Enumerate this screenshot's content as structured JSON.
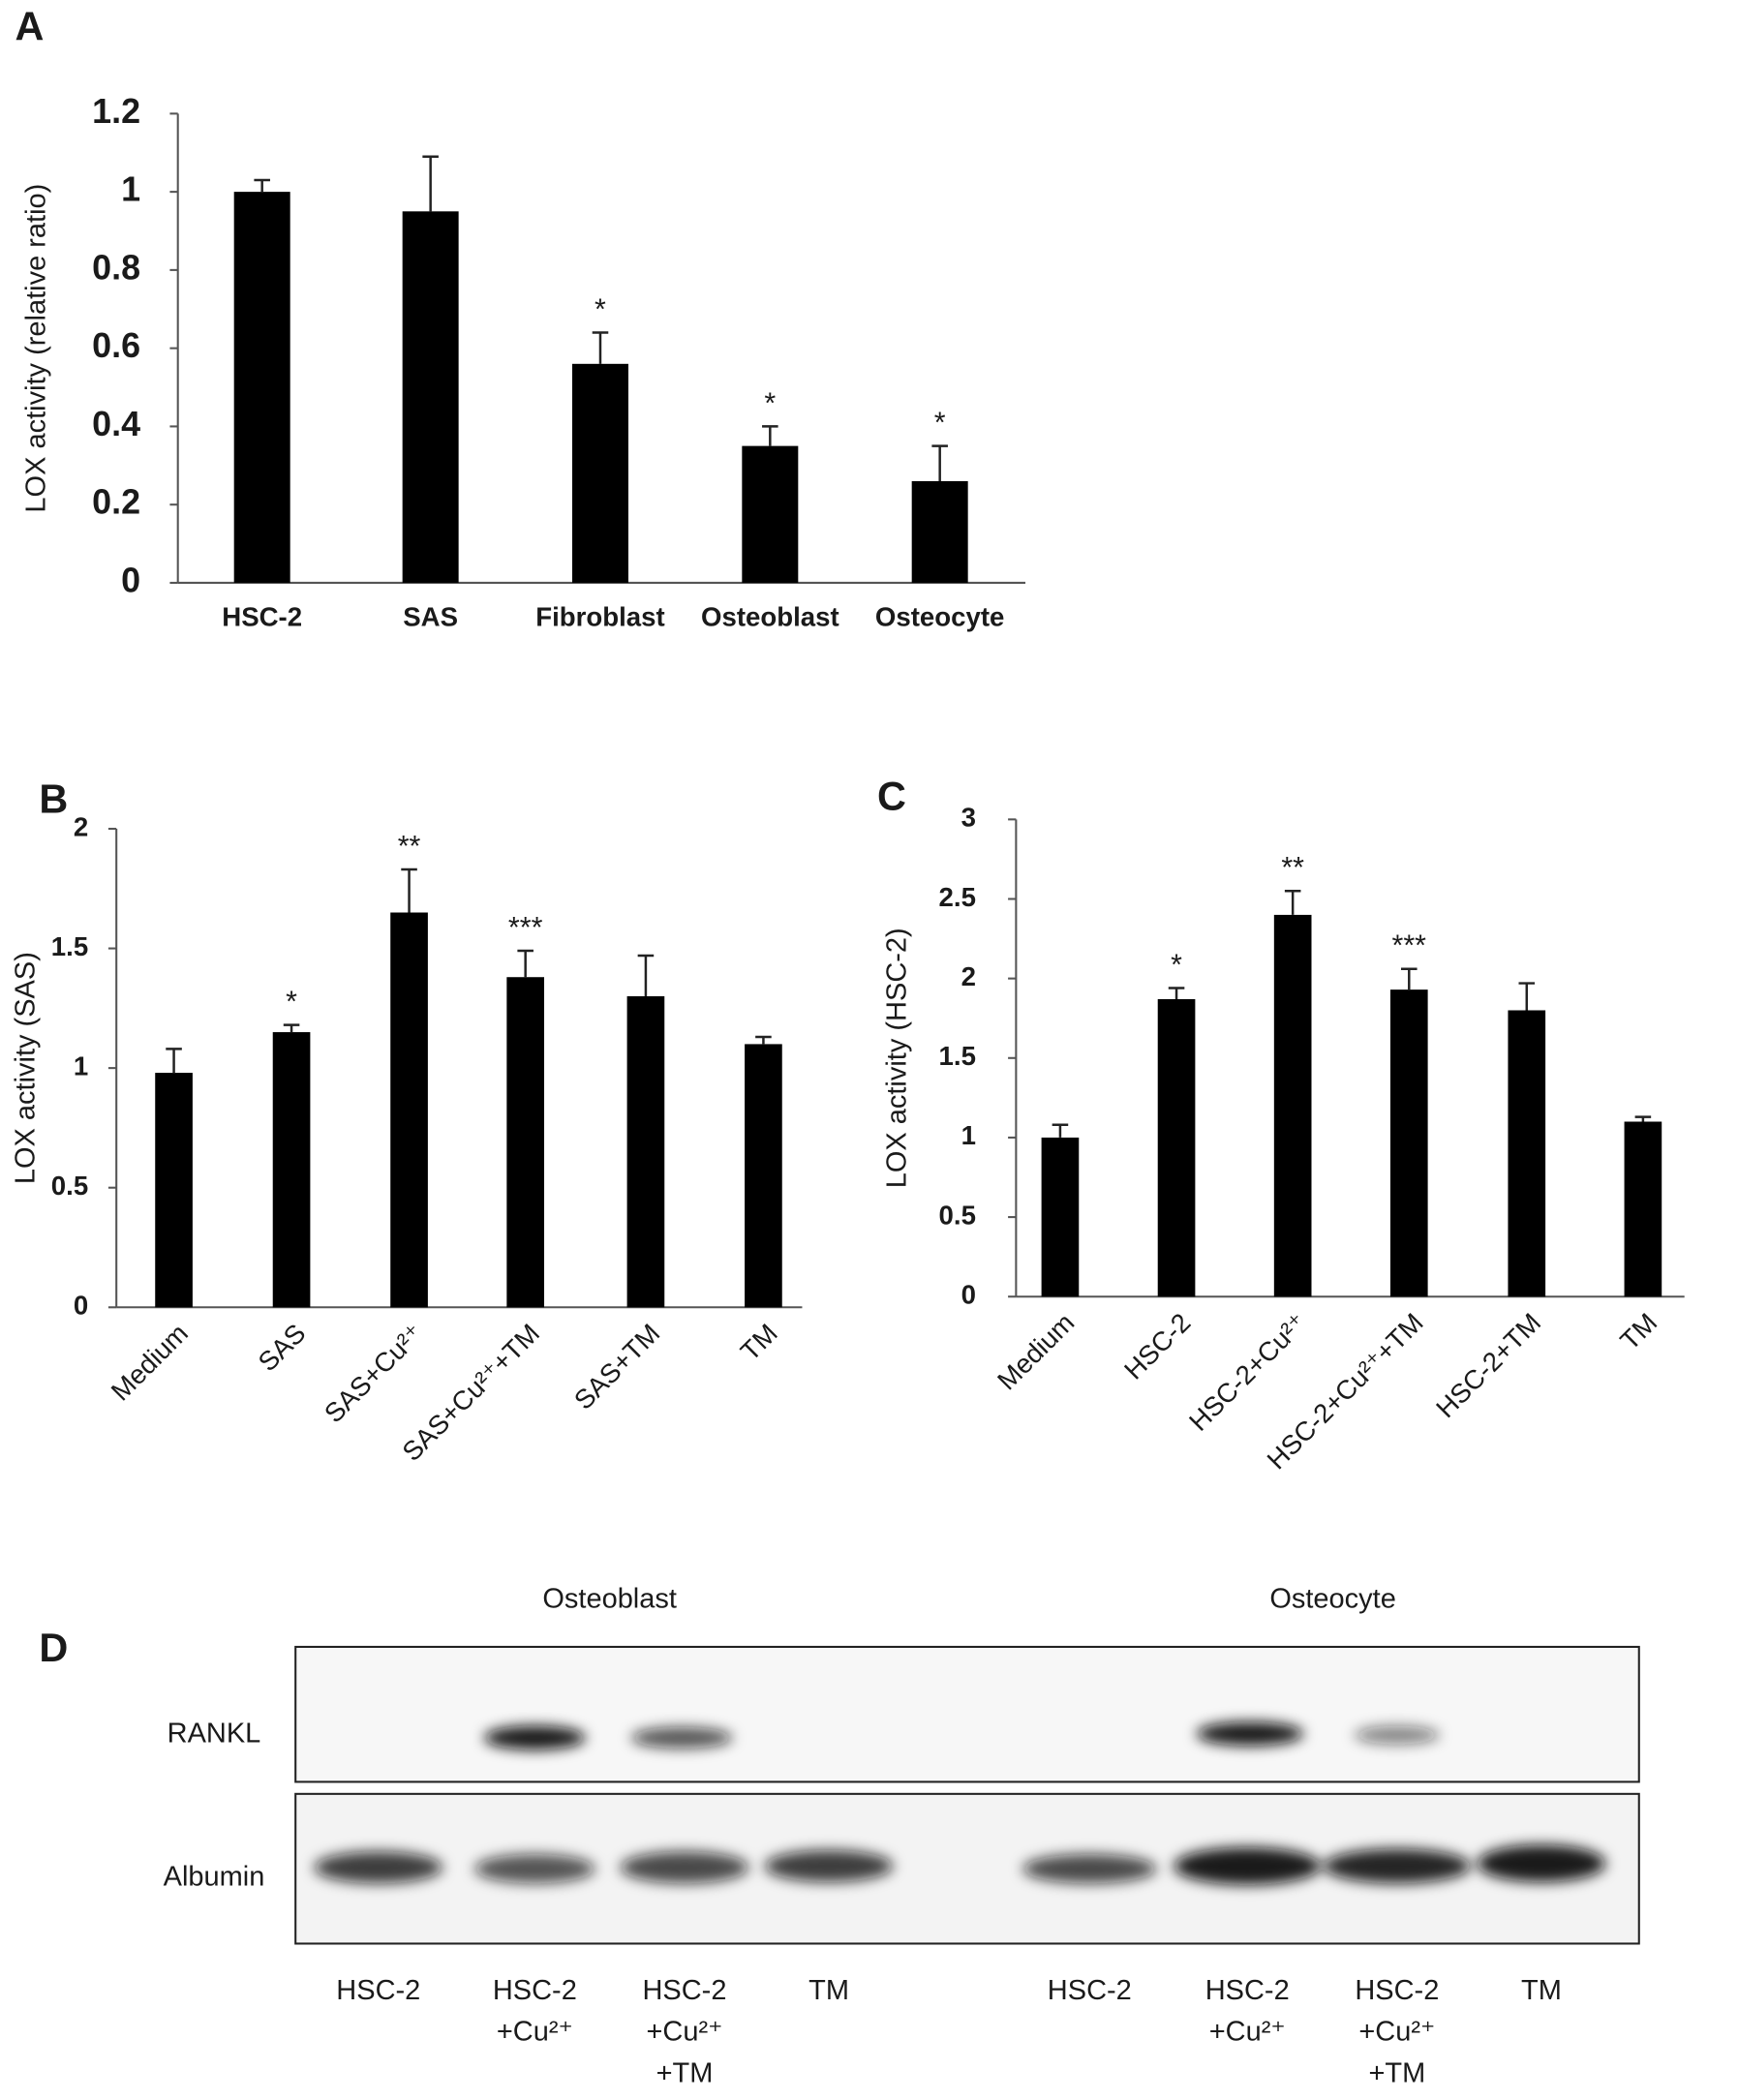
{
  "chart_data": [
    {
      "type": "bar",
      "panel": "A",
      "y_label": "LOX activity  (relative ratio)",
      "categories": [
        "HSC-2",
        "SAS",
        "Fibroblast",
        "Osteoblast",
        "Osteocyte"
      ],
      "values": [
        1.0,
        0.95,
        0.56,
        0.35,
        0.26
      ],
      "errors": [
        0.03,
        0.14,
        0.08,
        0.05,
        0.09
      ],
      "annotations": [
        null,
        null,
        "*",
        "*",
        "*"
      ],
      "color": "#000000",
      "ylim": [
        0,
        1.2
      ],
      "yticks": [
        0,
        0.2,
        0.4,
        0.6,
        0.8,
        1,
        1.2
      ]
    },
    {
      "type": "bar",
      "panel": "B",
      "y_label": "LOX activity (SAS)",
      "categories": [
        "Medium",
        "SAS",
        "SAS+Cu²⁺",
        "SAS+Cu²⁺+TM",
        "SAS+TM",
        "TM"
      ],
      "values": [
        0.98,
        1.15,
        1.65,
        1.38,
        1.3,
        1.1
      ],
      "errors": [
        0.1,
        0.03,
        0.18,
        0.11,
        0.17,
        0.03
      ],
      "annotations": [
        null,
        "*",
        "**",
        "***",
        null,
        null
      ],
      "color": "#000000",
      "ylim": [
        0,
        2
      ],
      "yticks": [
        0,
        0.5,
        1,
        1.5,
        2
      ]
    },
    {
      "type": "bar",
      "panel": "C",
      "y_label": "LOX activity  (HSC-2)",
      "categories": [
        "Medium",
        "HSC-2",
        "HSC-2+Cu²⁺",
        "HSC-2+Cu²⁺+TM",
        "HSC-2+TM",
        "TM"
      ],
      "values": [
        1.0,
        1.87,
        2.4,
        1.93,
        1.8,
        1.1
      ],
      "errors": [
        0.08,
        0.07,
        0.15,
        0.13,
        0.17,
        0.03
      ],
      "annotations": [
        null,
        "*",
        "**",
        "***",
        null,
        null
      ],
      "color": "#000000",
      "ylim": [
        0,
        3
      ],
      "yticks": [
        0,
        0.5,
        1,
        1.5,
        2,
        2.5,
        3
      ]
    }
  ],
  "blot": {
    "panel": "D",
    "rows": [
      "RANKL",
      "Albumin"
    ],
    "groups": [
      {
        "name": "Osteoblast",
        "lanes": [
          [
            "HSC-2"
          ],
          [
            "HSC-2",
            "+Cu²⁺"
          ],
          [
            "HSC-2",
            "+Cu²⁺",
            "+TM"
          ],
          [
            "TM"
          ]
        ]
      },
      {
        "name": "Osteocyte",
        "lanes": [
          [
            "HSC-2"
          ],
          [
            "HSC-2",
            "+Cu²⁺"
          ],
          [
            "HSC-2",
            "+Cu²⁺",
            "+TM"
          ],
          [
            "TM"
          ]
        ]
      }
    ]
  }
}
